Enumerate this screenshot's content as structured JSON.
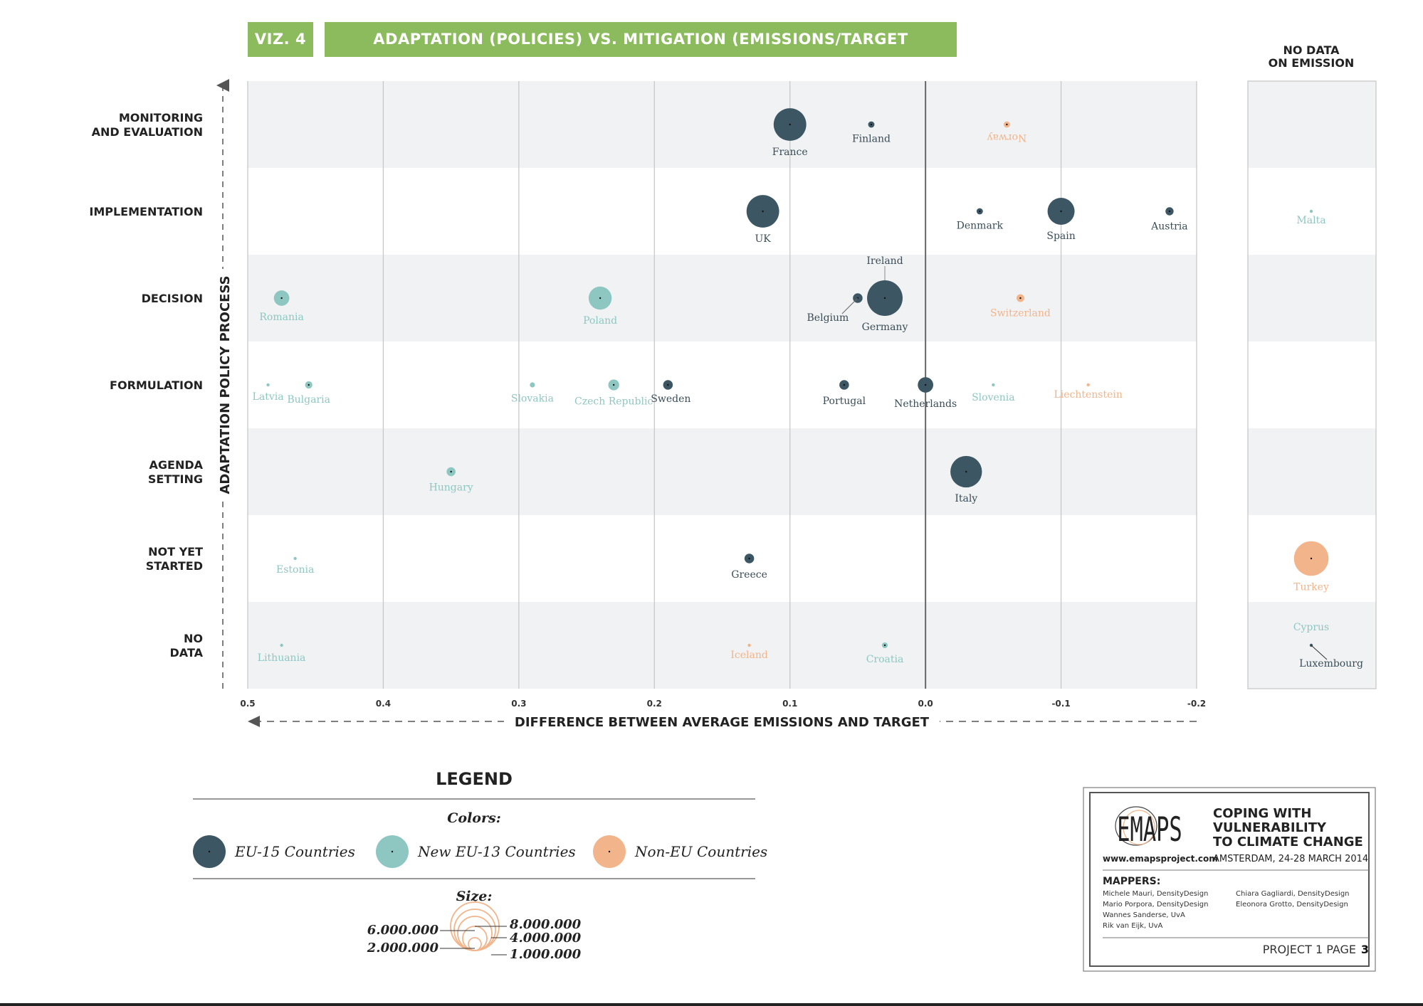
{
  "header": {
    "viz_number": "VIZ. 4",
    "viz_title": "ADAPTATION (POLICIES) VS. MITIGATION (EMISSIONS/TARGET DIFFERENCE)"
  },
  "colors": {
    "eu15": "#3d5663",
    "eu13": "#8ec7c2",
    "noneu": "#f2b48a",
    "accent_green": "#8cbb5e",
    "band": "#f1f2f3"
  },
  "chart_data": {
    "type": "scatter",
    "title": "ADAPTATION (POLICIES) VS. MITIGATION (EMISSIONS/TARGET DIFFERENCE)",
    "xlabel": "DIFFERENCE BETWEEN AVERAGE EMISSIONS AND TARGET",
    "ylabel": "ADAPTATION POLICY PROCESS",
    "x_ticks": [
      "0.5",
      "0.4",
      "0.3",
      "0.2",
      "0.1",
      "0.0",
      "-0.1",
      "-0.2"
    ],
    "xlim": [
      0.5,
      -0.2
    ],
    "categories": [
      "MONITORING AND EVALUATION",
      "IMPLEMENTATION",
      "DECISION",
      "FORMULATION",
      "AGENDA SETTING",
      "NOT YET STARTED",
      "NO DATA"
    ],
    "no_data_title": "NO DATA ON EMISSION",
    "series": [
      {
        "name": "EU-15 Countries",
        "color": "#3d5663",
        "points": [
          {
            "country": "France",
            "x": 0.1,
            "y": "MONITORING AND EVALUATION",
            "size": 8000000
          },
          {
            "country": "Finland",
            "x": 0.04,
            "y": "MONITORING AND EVALUATION",
            "size": 300000
          },
          {
            "country": "UK",
            "x": 0.12,
            "y": "IMPLEMENTATION",
            "size": 8000000
          },
          {
            "country": "Denmark",
            "x": -0.04,
            "y": "IMPLEMENTATION",
            "size": 300000
          },
          {
            "country": "Spain",
            "x": -0.1,
            "y": "IMPLEMENTATION",
            "size": 5500000
          },
          {
            "country": "Austria",
            "x": -0.18,
            "y": "IMPLEMENTATION",
            "size": 500000
          },
          {
            "country": "Ireland",
            "x": 0.03,
            "y": "DECISION",
            "size": 0
          },
          {
            "country": "Belgium",
            "x": 0.05,
            "y": "DECISION",
            "size": 700000
          },
          {
            "country": "Germany",
            "x": 0.03,
            "y": "DECISION",
            "size": 9500000
          },
          {
            "country": "Sweden",
            "x": 0.19,
            "y": "FORMULATION",
            "size": 700000
          },
          {
            "country": "Portugal",
            "x": 0.06,
            "y": "FORMULATION",
            "size": 700000
          },
          {
            "country": "Netherlands",
            "x": 0.0,
            "y": "FORMULATION",
            "size": 1800000
          },
          {
            "country": "Italy",
            "x": -0.03,
            "y": "AGENDA SETTING",
            "size": 7500000
          },
          {
            "country": "Greece",
            "x": 0.13,
            "y": "NOT YET STARTED",
            "size": 700000
          },
          {
            "country": "Luxembourg",
            "x": null,
            "y": "NO DATA",
            "size": 30000
          }
        ]
      },
      {
        "name": "New EU-13 Countries",
        "color": "#8ec7c2",
        "points": [
          {
            "country": "Romania",
            "x": 0.475,
            "y": "DECISION",
            "size": 1800000
          },
          {
            "country": "Poland",
            "x": 0.24,
            "y": "DECISION",
            "size": 4000000
          },
          {
            "country": "Latvia",
            "x": 0.485,
            "y": "FORMULATION",
            "size": 50000
          },
          {
            "country": "Bulgaria",
            "x": 0.455,
            "y": "FORMULATION",
            "size": 400000
          },
          {
            "country": "Slovakia",
            "x": 0.29,
            "y": "FORMULATION",
            "size": 200000
          },
          {
            "country": "Czech Republic",
            "x": 0.23,
            "y": "FORMULATION",
            "size": 900000
          },
          {
            "country": "Slovenia",
            "x": -0.05,
            "y": "FORMULATION",
            "size": 60000
          },
          {
            "country": "Hungary",
            "x": 0.35,
            "y": "AGENDA SETTING",
            "size": 600000
          },
          {
            "country": "Estonia",
            "x": 0.465,
            "y": "NOT YET STARTED",
            "size": 30000
          },
          {
            "country": "Lithuania",
            "x": 0.475,
            "y": "NO DATA",
            "size": 60000
          },
          {
            "country": "Croatia",
            "x": 0.03,
            "y": "NO DATA",
            "size": 250000
          },
          {
            "country": "Malta",
            "x": null,
            "y": "IMPLEMENTATION",
            "size": 5000
          },
          {
            "country": "Cyprus",
            "x": null,
            "y": "NO DATA",
            "size": 0
          }
        ]
      },
      {
        "name": "Non-EU Countries",
        "color": "#f2b48a",
        "points": [
          {
            "country": "Norway",
            "x": -0.06,
            "y": "MONITORING AND EVALUATION",
            "size": 300000
          },
          {
            "country": "Switzerland",
            "x": -0.07,
            "y": "DECISION",
            "size": 450000
          },
          {
            "country": "Liechtenstein",
            "x": -0.12,
            "y": "FORMULATION",
            "size": 4000
          },
          {
            "country": "Iceland",
            "x": 0.13,
            "y": "NO DATA",
            "size": 4000
          },
          {
            "country": "Turkey",
            "x": null,
            "y": "NOT YET STARTED",
            "size": 9000000
          }
        ]
      }
    ],
    "legend": {
      "title": "LEGEND",
      "colors_title": "Colors:",
      "size_title": "Size:",
      "size_labels": [
        "6.000.000",
        "2.000.000",
        "8.000.000",
        "4.000.000",
        "1.000.000"
      ]
    }
  },
  "credits": {
    "logo": "EMAPS",
    "website": "www.emapsproject.com",
    "title_lines": [
      "COPING WITH",
      "VULNERABILITY",
      "TO CLIMATE CHANGE"
    ],
    "place_date": "AMSTERDAM, 24-28 MARCH 2014",
    "mappers_title": "MAPPERS:",
    "mappers_left": [
      "Michele Mauri, DensityDesign",
      "Mario Porpora, DensityDesign",
      "Wannes Sanderse, UvA",
      "Rik van Eijk, UvA"
    ],
    "mappers_right": [
      "Chiara Gagliardi, DensityDesign",
      "Eleonora Grotto, DensityDesign"
    ],
    "page_label": "PROJECT 1 PAGE",
    "page_number": "3"
  }
}
